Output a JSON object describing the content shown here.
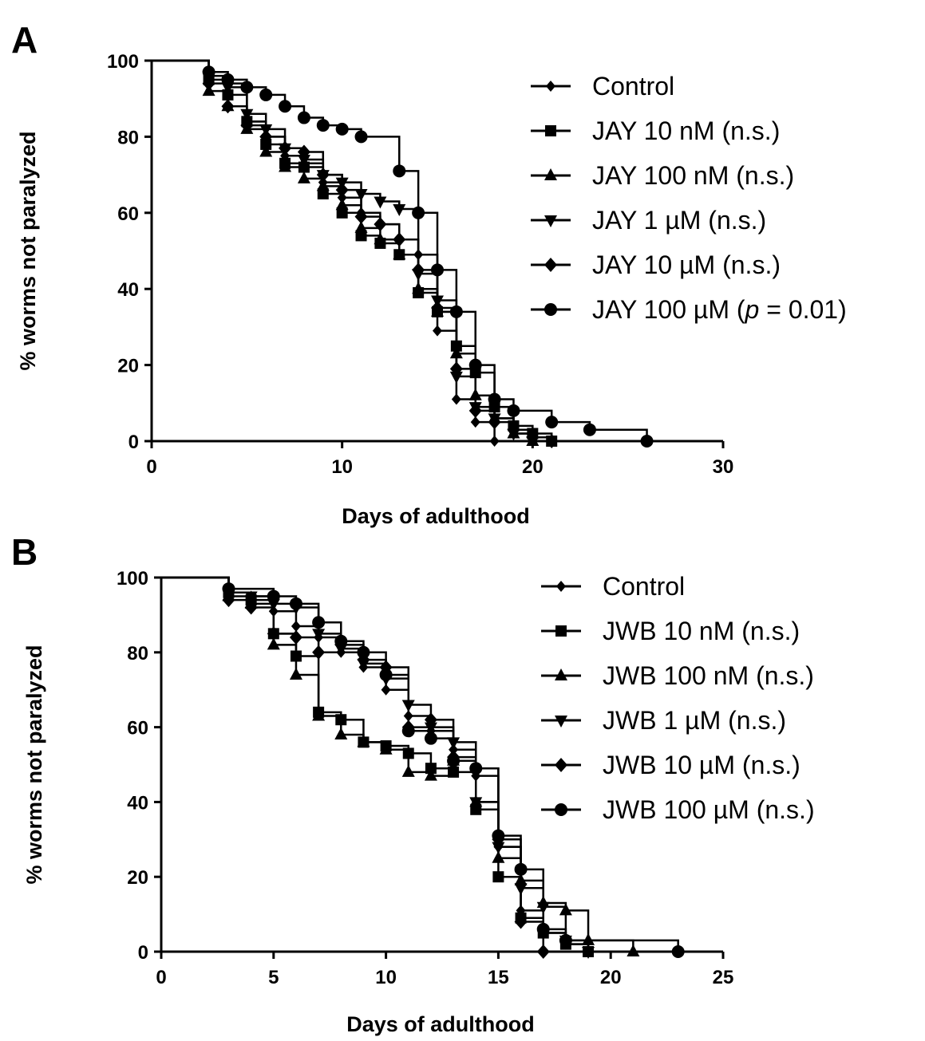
{
  "chart_data": [
    {
      "panel": "A",
      "type": "line",
      "xlabel": "Days of adulthood",
      "ylabel": "% worms not paralyzed",
      "xlim": [
        0,
        30
      ],
      "ylim": [
        0,
        100
      ],
      "xticks": [
        0,
        10,
        20,
        30
      ],
      "yticks": [
        0,
        20,
        40,
        60,
        80,
        100
      ],
      "legend_position": "top-right",
      "grid": false,
      "series": [
        {
          "name": "Control",
          "marker": "diamond-dot",
          "points": [
            [
              0,
              100
            ],
            [
              3,
              97
            ],
            [
              4,
              94
            ],
            [
              5,
              84
            ],
            [
              6,
              80
            ],
            [
              7,
              75
            ],
            [
              8,
              73
            ],
            [
              9,
              68
            ],
            [
              10,
              64
            ],
            [
              11,
              60
            ],
            [
              12,
              57
            ],
            [
              13,
              53
            ],
            [
              14,
              49
            ],
            [
              15,
              29
            ],
            [
              16,
              11
            ],
            [
              17,
              5
            ],
            [
              18,
              0
            ]
          ]
        },
        {
          "name": "JAY 10 nM (n.s.)",
          "marker": "square",
          "points": [
            [
              0,
              100
            ],
            [
              3,
              95
            ],
            [
              4,
              91
            ],
            [
              5,
              84
            ],
            [
              6,
              78
            ],
            [
              7,
              73
            ],
            [
              8,
              72
            ],
            [
              9,
              65
            ],
            [
              10,
              60
            ],
            [
              11,
              54
            ],
            [
              12,
              52
            ],
            [
              13,
              49
            ],
            [
              14,
              39
            ],
            [
              15,
              34
            ],
            [
              16,
              25
            ],
            [
              17,
              18
            ],
            [
              18,
              9
            ],
            [
              19,
              4
            ],
            [
              20,
              2
            ],
            [
              21,
              0
            ]
          ]
        },
        {
          "name": "JAY 100 nM (n.s.)",
          "marker": "triangle-up",
          "points": [
            [
              0,
              100
            ],
            [
              3,
              92
            ],
            [
              4,
              88
            ],
            [
              5,
              82
            ],
            [
              6,
              76
            ],
            [
              7,
              72
            ],
            [
              8,
              69
            ],
            [
              9,
              67
            ],
            [
              10,
              62
            ],
            [
              11,
              56
            ],
            [
              12,
              53
            ],
            [
              13,
              49
            ],
            [
              14,
              40
            ],
            [
              15,
              34
            ],
            [
              16,
              23
            ],
            [
              17,
              12
            ],
            [
              18,
              6
            ],
            [
              19,
              2
            ],
            [
              20,
              0
            ]
          ]
        },
        {
          "name": "JAY 1 µM (n.s.)",
          "marker": "triangle-down",
          "points": [
            [
              0,
              100
            ],
            [
              3,
              96
            ],
            [
              4,
              93
            ],
            [
              5,
              86
            ],
            [
              6,
              82
            ],
            [
              7,
              77
            ],
            [
              8,
              74
            ],
            [
              9,
              70
            ],
            [
              10,
              68
            ],
            [
              11,
              65
            ],
            [
              12,
              63
            ],
            [
              13,
              61
            ],
            [
              14,
              44
            ],
            [
              15,
              37
            ],
            [
              16,
              17
            ],
            [
              17,
              9
            ],
            [
              18,
              6
            ],
            [
              19,
              2
            ],
            [
              20,
              0
            ]
          ]
        },
        {
          "name": "JAY 10 µM (n.s.)",
          "marker": "diamond",
          "points": [
            [
              0,
              100
            ],
            [
              3,
              94
            ],
            [
              4,
              88
            ],
            [
              5,
              83
            ],
            [
              6,
              80
            ],
            [
              7,
              77
            ],
            [
              8,
              76
            ],
            [
              9,
              70
            ],
            [
              10,
              66
            ],
            [
              11,
              59
            ],
            [
              12,
              57
            ],
            [
              13,
              53
            ],
            [
              14,
              45
            ],
            [
              15,
              35
            ],
            [
              16,
              19
            ],
            [
              17,
              8
            ],
            [
              18,
              5
            ],
            [
              19,
              3
            ],
            [
              20,
              1
            ],
            [
              21,
              0
            ]
          ]
        },
        {
          "name": "JAY 100 µM (p = 0.01)",
          "marker": "circle",
          "points": [
            [
              0,
              100
            ],
            [
              3,
              97
            ],
            [
              4,
              95
            ],
            [
              5,
              93
            ],
            [
              6,
              91
            ],
            [
              7,
              88
            ],
            [
              8,
              85
            ],
            [
              9,
              83
            ],
            [
              10,
              82
            ],
            [
              11,
              80
            ],
            [
              13,
              71
            ],
            [
              14,
              60
            ],
            [
              15,
              45
            ],
            [
              16,
              34
            ],
            [
              17,
              20
            ],
            [
              18,
              11
            ],
            [
              19,
              8
            ],
            [
              21,
              5
            ],
            [
              23,
              3
            ],
            [
              26,
              0
            ]
          ]
        }
      ]
    },
    {
      "panel": "B",
      "type": "line",
      "xlabel": "Days of adulthood",
      "ylabel": "% worms not paralyzed",
      "xlim": [
        0,
        25
      ],
      "ylim": [
        0,
        100
      ],
      "xticks": [
        0,
        5,
        10,
        15,
        20,
        25
      ],
      "yticks": [
        0,
        20,
        40,
        60,
        80,
        100
      ],
      "legend_position": "top-right",
      "grid": false,
      "series": [
        {
          "name": "Control",
          "marker": "diamond-dot",
          "points": [
            [
              0,
              100
            ],
            [
              3,
              96
            ],
            [
              4,
              95
            ],
            [
              5,
              91
            ],
            [
              6,
              87
            ],
            [
              7,
              84
            ],
            [
              8,
              80
            ],
            [
              9,
              76
            ],
            [
              10,
              70
            ],
            [
              11,
              63
            ],
            [
              12,
              59
            ],
            [
              13,
              54
            ],
            [
              14,
              47
            ],
            [
              15,
              28
            ],
            [
              16,
              11
            ],
            [
              17,
              5
            ],
            [
              18,
              2
            ],
            [
              19,
              0
            ]
          ]
        },
        {
          "name": "JWB 10 nM (n.s.)",
          "marker": "square",
          "points": [
            [
              0,
              100
            ],
            [
              3,
              96
            ],
            [
              4,
              94
            ],
            [
              5,
              85
            ],
            [
              6,
              79
            ],
            [
              7,
              64
            ],
            [
              8,
              62
            ],
            [
              9,
              56
            ],
            [
              10,
              55
            ],
            [
              11,
              53
            ],
            [
              12,
              49
            ],
            [
              13,
              48
            ],
            [
              14,
              38
            ],
            [
              15,
              20
            ],
            [
              16,
              9
            ],
            [
              17,
              5
            ],
            [
              18,
              2
            ],
            [
              19,
              0
            ]
          ]
        },
        {
          "name": "JWB 100 nM (n.s.)",
          "marker": "triangle-up",
          "points": [
            [
              0,
              100
            ],
            [
              3,
              95
            ],
            [
              4,
              93
            ],
            [
              5,
              82
            ],
            [
              6,
              74
            ],
            [
              7,
              63
            ],
            [
              8,
              58
            ],
            [
              9,
              56
            ],
            [
              10,
              54
            ],
            [
              11,
              48
            ],
            [
              12,
              47
            ],
            [
              13,
              51
            ],
            [
              14,
              40
            ],
            [
              15,
              25
            ],
            [
              16,
              19
            ],
            [
              17,
              13
            ],
            [
              18,
              11
            ],
            [
              19,
              3
            ],
            [
              21,
              0
            ]
          ]
        },
        {
          "name": "JWB 1 µM (n.s.)",
          "marker": "triangle-down",
          "points": [
            [
              0,
              100
            ],
            [
              3,
              96
            ],
            [
              4,
              95
            ],
            [
              5,
              93
            ],
            [
              6,
              92
            ],
            [
              7,
              85
            ],
            [
              8,
              81
            ],
            [
              9,
              77
            ],
            [
              10,
              73
            ],
            [
              11,
              66
            ],
            [
              12,
              60
            ],
            [
              13,
              56
            ],
            [
              14,
              40
            ],
            [
              15,
              28
            ],
            [
              16,
              17
            ],
            [
              17,
              12
            ],
            [
              18,
              3
            ],
            [
              19,
              0
            ]
          ]
        },
        {
          "name": "JWB 10 µM (n.s.)",
          "marker": "diamond",
          "points": [
            [
              0,
              100
            ],
            [
              3,
              94
            ],
            [
              4,
              92
            ],
            [
              5,
              85
            ],
            [
              6,
              84
            ],
            [
              7,
              80
            ],
            [
              8,
              82
            ],
            [
              9,
              78
            ],
            [
              10,
              76
            ],
            [
              11,
              60
            ],
            [
              12,
              62
            ],
            [
              13,
              52
            ],
            [
              14,
              49
            ],
            [
              15,
              30
            ],
            [
              16,
              8
            ],
            [
              17,
              0
            ]
          ]
        },
        {
          "name": "JWB 100 µM (n.s.)",
          "marker": "circle",
          "points": [
            [
              0,
              100
            ],
            [
              3,
              97
            ],
            [
              5,
              95
            ],
            [
              6,
              93
            ],
            [
              7,
              88
            ],
            [
              8,
              83
            ],
            [
              9,
              80
            ],
            [
              10,
              74
            ],
            [
              11,
              59
            ],
            [
              12,
              57
            ],
            [
              13,
              51
            ],
            [
              14,
              49
            ],
            [
              15,
              31
            ],
            [
              16,
              22
            ],
            [
              17,
              6
            ],
            [
              18,
              3
            ],
            [
              23,
              0
            ]
          ]
        }
      ]
    }
  ]
}
